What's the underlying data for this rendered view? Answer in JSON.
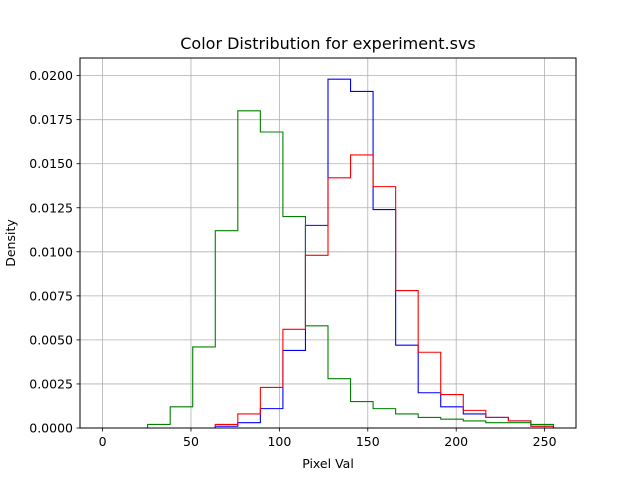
{
  "chart_data": {
    "type": "histogram",
    "title": "Color Distribution for experiment.svs",
    "xlabel": "Pixel Val",
    "ylabel": "Density",
    "xlim": [
      -12.75,
      267.75
    ],
    "ylim": [
      0,
      0.021
    ],
    "xticks": [
      0,
      50,
      100,
      150,
      200,
      250
    ],
    "yticks": [
      0.0,
      0.0025,
      0.005,
      0.0075,
      0.01,
      0.0125,
      0.015,
      0.0175,
      0.02
    ],
    "ytick_labels": [
      "0.0000",
      "0.0025",
      "0.0050",
      "0.0075",
      "0.0100",
      "0.0125",
      "0.0150",
      "0.0175",
      "0.0200"
    ],
    "grid": true,
    "bin_edges": [
      0,
      12.75,
      25.5,
      38.25,
      51,
      63.75,
      76.5,
      89.25,
      102,
      114.75,
      127.5,
      140.25,
      153,
      165.75,
      178.5,
      191.25,
      204,
      216.75,
      229.5,
      242.25,
      255
    ],
    "series": [
      {
        "color": "#0000ff",
        "values": [
          0,
          0,
          0,
          0,
          0,
          0.0001,
          0.0003,
          0.0011,
          0.0044,
          0.0115,
          0.0198,
          0.0191,
          0.0124,
          0.0047,
          0.002,
          0.0012,
          0.0008,
          0.0006,
          0.0004,
          0.0001
        ]
      },
      {
        "color": "#ff0000",
        "values": [
          0,
          0,
          0,
          0,
          0,
          0.0002,
          0.0008,
          0.0023,
          0.0056,
          0.0098,
          0.0142,
          0.0155,
          0.0137,
          0.0078,
          0.0043,
          0.0019,
          0.001,
          0.0006,
          0.0004,
          0.0001
        ]
      },
      {
        "color": "#008000",
        "values": [
          0,
          0,
          0.0002,
          0.0012,
          0.0046,
          0.0112,
          0.018,
          0.0168,
          0.012,
          0.0058,
          0.0028,
          0.0015,
          0.0011,
          0.0008,
          0.0006,
          0.0005,
          0.0004,
          0.0003,
          0.0003,
          0.0002
        ]
      }
    ]
  }
}
